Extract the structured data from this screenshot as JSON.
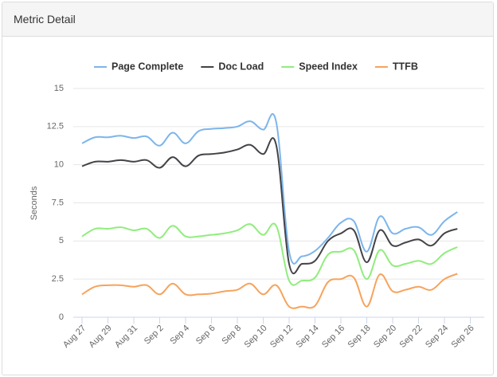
{
  "panel": {
    "title": "Metric Detail"
  },
  "chart_data": {
    "type": "line",
    "y_label": "Seconds",
    "legend": "top",
    "grid": true,
    "ylim": [
      0,
      15
    ],
    "yticks": [
      0,
      2.5,
      5,
      7.5,
      10,
      12.5,
      15
    ],
    "categories": [
      "Aug 27",
      null,
      "Aug 29",
      null,
      "Aug 31",
      null,
      "Sep 2",
      null,
      "Sep 4",
      null,
      "Sep 6",
      null,
      "Sep 8",
      null,
      "Sep 10",
      null,
      "Sep 12",
      null,
      "Sep 14",
      null,
      "Sep 16",
      null,
      "Sep 18",
      null,
      "Sep 20",
      null,
      "Sep 22",
      null,
      "Sep 24",
      null,
      "Sep 26"
    ],
    "series": [
      {
        "name": "Page Complete",
        "color": "#7cb5ec",
        "values": [
          11.4,
          11.8,
          11.8,
          11.9,
          11.75,
          11.85,
          11.25,
          12.1,
          11.4,
          12.2,
          12.35,
          12.4,
          12.5,
          12.85,
          12.3,
          12.8,
          4.3,
          4.0,
          4.35,
          5.2,
          6.2,
          6.3,
          4.3,
          6.6,
          5.5,
          5.8,
          5.9,
          5.4,
          6.3,
          6.9,
          null
        ]
      },
      {
        "name": "Doc Load",
        "color": "#434348",
        "values": [
          9.9,
          10.2,
          10.2,
          10.3,
          10.2,
          10.3,
          9.8,
          10.5,
          9.9,
          10.6,
          10.7,
          10.8,
          11.0,
          11.3,
          10.7,
          11.3,
          3.5,
          3.5,
          3.7,
          5.0,
          5.5,
          5.7,
          3.6,
          5.7,
          4.7,
          4.9,
          5.1,
          4.7,
          5.5,
          5.8,
          null
        ]
      },
      {
        "name": "Speed Index",
        "color": "#90ed7d",
        "values": [
          5.3,
          5.8,
          5.8,
          5.9,
          5.7,
          5.8,
          5.2,
          6.0,
          5.3,
          5.3,
          5.4,
          5.5,
          5.7,
          6.1,
          5.4,
          6.0,
          2.4,
          2.4,
          2.6,
          4.1,
          4.3,
          4.4,
          2.5,
          4.4,
          3.4,
          3.5,
          3.7,
          3.5,
          4.2,
          4.6,
          null
        ]
      },
      {
        "name": "TTFB",
        "color": "#f7a35c",
        "values": [
          1.5,
          2.0,
          2.1,
          2.1,
          2.0,
          2.1,
          1.5,
          2.2,
          1.5,
          1.5,
          1.55,
          1.7,
          1.8,
          2.2,
          1.5,
          2.1,
          0.7,
          0.7,
          0.75,
          2.3,
          2.5,
          2.6,
          0.7,
          2.8,
          1.7,
          1.8,
          2.0,
          1.8,
          2.5,
          2.85,
          null
        ]
      }
    ]
  }
}
